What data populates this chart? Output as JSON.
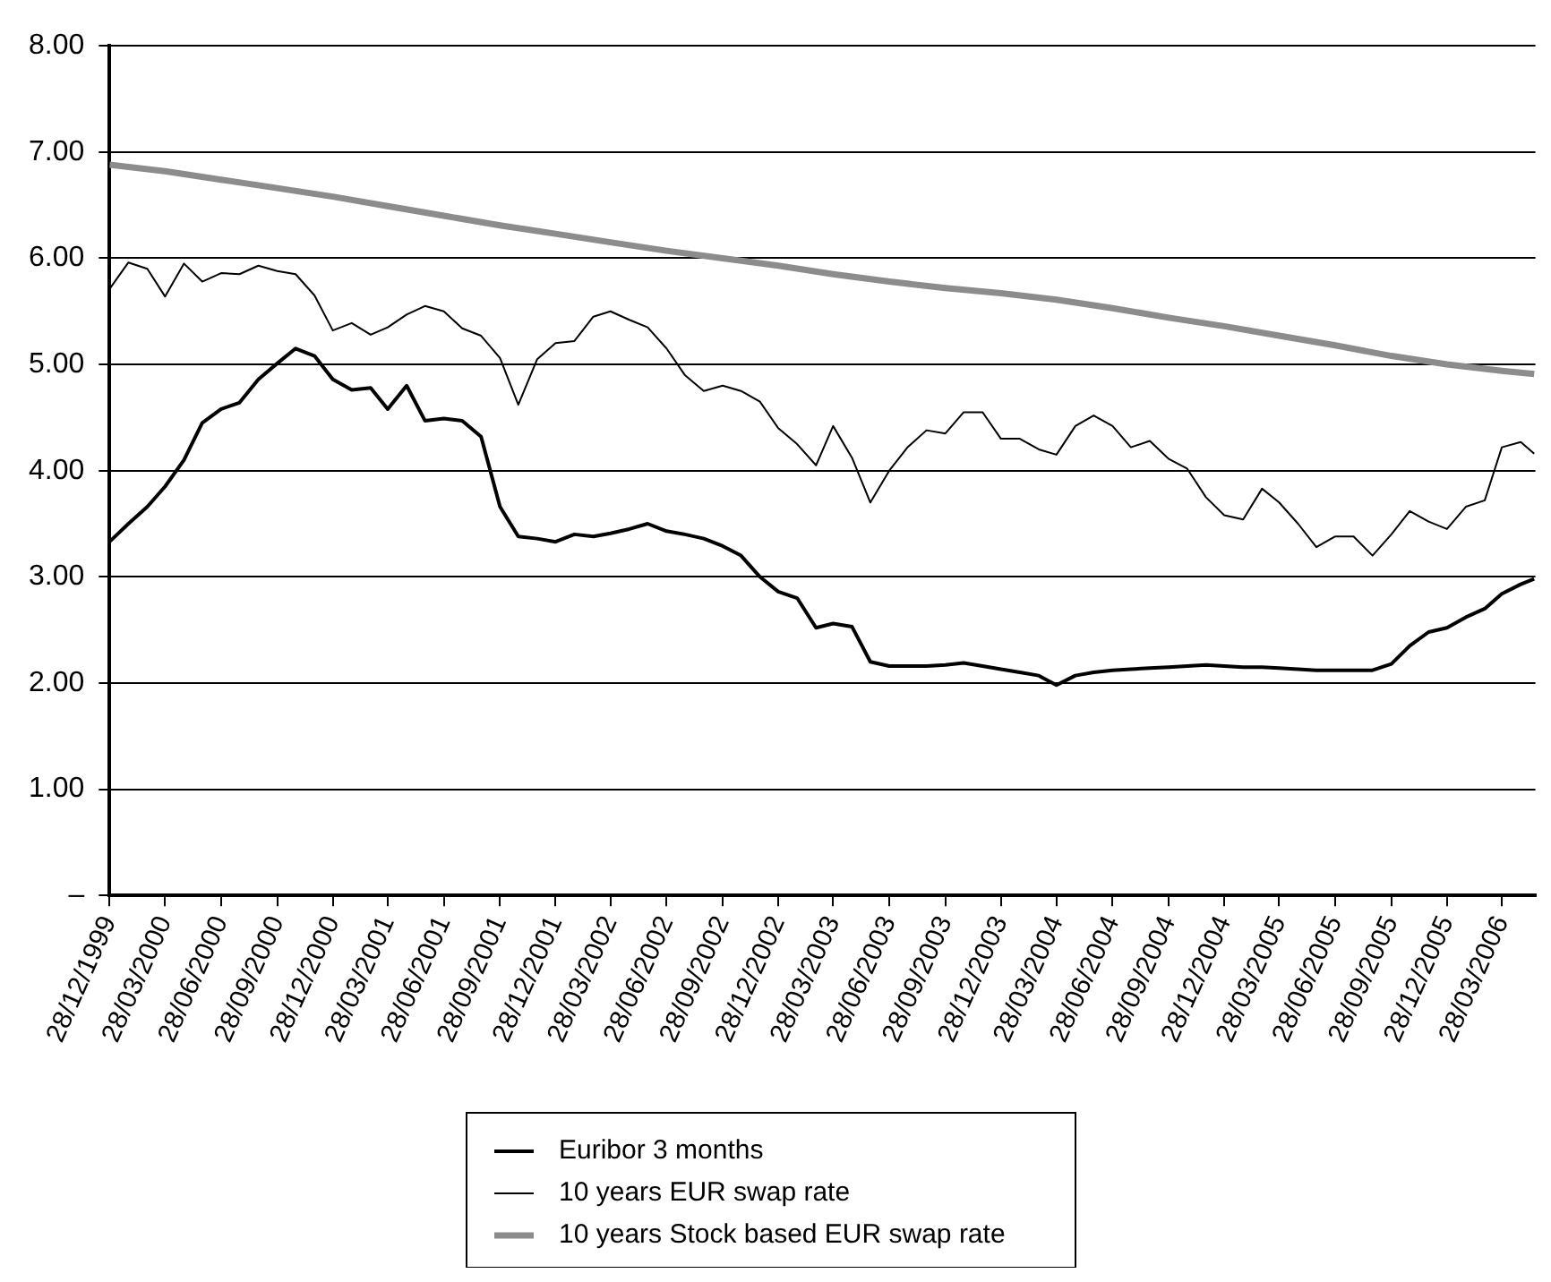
{
  "chart_data": {
    "type": "line",
    "legend": "bottom",
    "grid": "y",
    "marker": "none",
    "line_style": "solid",
    "xlim": [
      "1999-12-28",
      "2006-05-22"
    ],
    "xticks": [
      {
        "value": "1999-12-28",
        "label": "28/12/1999"
      },
      {
        "value": "2000-03-28",
        "label": "28/03/2000"
      },
      {
        "value": "2000-06-28",
        "label": "28/06/2000"
      },
      {
        "value": "2000-09-28",
        "label": "28/09/2000"
      },
      {
        "value": "2000-12-28",
        "label": "28/12/2000"
      },
      {
        "value": "2001-03-28",
        "label": "28/03/2001"
      },
      {
        "value": "2001-06-28",
        "label": "28/06/2001"
      },
      {
        "value": "2001-09-28",
        "label": "28/09/2001"
      },
      {
        "value": "2001-12-28",
        "label": "28/12/2001"
      },
      {
        "value": "2002-03-28",
        "label": "28/03/2002"
      },
      {
        "value": "2002-06-28",
        "label": "28/06/2002"
      },
      {
        "value": "2002-09-28",
        "label": "28/09/2002"
      },
      {
        "value": "2002-12-28",
        "label": "28/12/2002"
      },
      {
        "value": "2003-03-28",
        "label": "28/03/2003"
      },
      {
        "value": "2003-06-28",
        "label": "28/06/2003"
      },
      {
        "value": "2003-09-28",
        "label": "28/09/2003"
      },
      {
        "value": "2003-12-28",
        "label": "28/12/2003"
      },
      {
        "value": "2004-03-28",
        "label": "28/03/2004"
      },
      {
        "value": "2004-06-28",
        "label": "28/06/2004"
      },
      {
        "value": "2004-09-28",
        "label": "28/09/2004"
      },
      {
        "value": "2004-12-28",
        "label": "28/12/2004"
      },
      {
        "value": "2005-03-28",
        "label": "28/03/2005"
      },
      {
        "value": "2005-06-28",
        "label": "28/06/2005"
      },
      {
        "value": "2005-09-28",
        "label": "28/09/2005"
      },
      {
        "value": "2005-12-28",
        "label": "28/12/2005"
      },
      {
        "value": "2006-03-28",
        "label": "28/03/2006"
      }
    ],
    "ylim": [
      0,
      8
    ],
    "yticks": [
      {
        "value": 0,
        "label": "–"
      },
      {
        "value": 1,
        "label": "1.00"
      },
      {
        "value": 2,
        "label": "2.00"
      },
      {
        "value": 3,
        "label": "3.00"
      },
      {
        "value": 4,
        "label": "4.00"
      },
      {
        "value": 5,
        "label": "5.00"
      },
      {
        "value": 6,
        "label": "6.00"
      },
      {
        "value": 7,
        "label": "7.00"
      },
      {
        "value": 8,
        "label": "8.00"
      }
    ],
    "x": [
      "1999-12-28",
      "2000-01-28",
      "2000-02-28",
      "2000-03-28",
      "2000-04-28",
      "2000-05-28",
      "2000-06-28",
      "2000-07-28",
      "2000-08-28",
      "2000-09-28",
      "2000-10-28",
      "2000-11-28",
      "2000-12-28",
      "2001-01-28",
      "2001-02-28",
      "2001-03-28",
      "2001-04-28",
      "2001-05-28",
      "2001-06-28",
      "2001-07-28",
      "2001-08-28",
      "2001-09-28",
      "2001-10-28",
      "2001-11-28",
      "2001-12-28",
      "2002-01-28",
      "2002-02-28",
      "2002-03-28",
      "2002-04-28",
      "2002-05-28",
      "2002-06-28",
      "2002-07-28",
      "2002-08-28",
      "2002-09-28",
      "2002-10-28",
      "2002-11-28",
      "2002-12-28",
      "2003-01-28",
      "2003-02-28",
      "2003-03-28",
      "2003-04-28",
      "2003-05-28",
      "2003-06-28",
      "2003-07-28",
      "2003-08-28",
      "2003-09-28",
      "2003-10-28",
      "2003-11-28",
      "2003-12-28",
      "2004-01-28",
      "2004-02-28",
      "2004-03-28",
      "2004-04-28",
      "2004-05-28",
      "2004-06-28",
      "2004-07-28",
      "2004-08-28",
      "2004-09-28",
      "2004-10-28",
      "2004-11-28",
      "2004-12-28",
      "2005-01-28",
      "2005-02-28",
      "2005-03-28",
      "2005-04-28",
      "2005-05-28",
      "2005-06-28",
      "2005-07-28",
      "2005-08-28",
      "2005-09-28",
      "2005-10-28",
      "2005-11-28",
      "2005-12-28",
      "2006-01-28",
      "2006-02-28",
      "2006-03-28",
      "2006-04-28",
      "2006-05-20"
    ],
    "series": [
      {
        "name": "Euribor 3 months",
        "color": "#000000",
        "values": [
          3.33,
          3.5,
          3.66,
          3.85,
          4.1,
          4.45,
          4.58,
          4.64,
          4.86,
          5.01,
          5.15,
          5.08,
          4.86,
          4.76,
          4.78,
          4.58,
          4.8,
          4.47,
          4.49,
          4.47,
          4.32,
          3.66,
          3.38,
          3.36,
          3.33,
          3.4,
          3.38,
          3.41,
          3.45,
          3.5,
          3.43,
          3.4,
          3.36,
          3.29,
          3.2,
          3.0,
          2.86,
          2.8,
          2.52,
          2.56,
          2.53,
          2.2,
          2.16,
          2.16,
          2.16,
          2.17,
          2.19,
          2.16,
          2.13,
          2.1,
          2.07,
          1.98,
          2.07,
          2.1,
          2.12,
          2.13,
          2.14,
          2.15,
          2.16,
          2.17,
          2.16,
          2.15,
          2.15,
          2.14,
          2.13,
          2.12,
          2.12,
          2.12,
          2.12,
          2.18,
          2.35,
          2.48,
          2.52,
          2.62,
          2.7,
          2.84,
          2.93,
          2.98
        ]
      },
      {
        "name": "10 years EUR swap rate",
        "color": "#000000",
        "values": [
          5.71,
          5.96,
          5.9,
          5.64,
          5.95,
          5.78,
          5.86,
          5.85,
          5.93,
          5.88,
          5.85,
          5.65,
          5.32,
          5.39,
          5.28,
          5.35,
          5.47,
          5.55,
          5.5,
          5.34,
          5.27,
          5.06,
          4.62,
          5.05,
          5.2,
          5.22,
          5.45,
          5.5,
          5.42,
          5.35,
          5.15,
          4.9,
          4.75,
          4.8,
          4.75,
          4.65,
          4.4,
          4.25,
          4.05,
          4.42,
          4.12,
          3.7,
          4.0,
          4.22,
          4.38,
          4.35,
          4.55,
          4.55,
          4.3,
          4.3,
          4.2,
          4.15,
          4.42,
          4.52,
          4.42,
          4.22,
          4.28,
          4.11,
          4.02,
          3.75,
          3.58,
          3.54,
          3.83,
          3.7,
          3.5,
          3.28,
          3.38,
          3.38,
          3.2,
          3.4,
          3.62,
          3.52,
          3.45,
          3.66,
          3.72,
          4.22,
          4.27,
          4.16
        ]
      },
      {
        "name": "10 years Stock based EUR swap rate",
        "color": "#8c8c8c",
        "x": [
          "1999-12-28",
          "2000-03-28",
          "2000-06-28",
          "2000-09-28",
          "2000-12-28",
          "2001-03-28",
          "2001-06-28",
          "2001-09-28",
          "2001-12-28",
          "2002-03-28",
          "2002-06-28",
          "2002-09-28",
          "2002-12-28",
          "2003-03-28",
          "2003-06-28",
          "2003-09-28",
          "2003-12-28",
          "2004-03-28",
          "2004-06-28",
          "2004-09-28",
          "2004-12-28",
          "2005-03-28",
          "2005-06-28",
          "2005-09-28",
          "2005-12-28",
          "2006-03-28",
          "2006-05-20"
        ],
        "values": [
          6.88,
          6.82,
          6.74,
          6.66,
          6.58,
          6.49,
          6.4,
          6.31,
          6.23,
          6.15,
          6.07,
          6.0,
          5.93,
          5.85,
          5.78,
          5.72,
          5.67,
          5.61,
          5.53,
          5.44,
          5.36,
          5.27,
          5.18,
          5.08,
          5.0,
          4.94,
          4.91
        ]
      }
    ]
  }
}
